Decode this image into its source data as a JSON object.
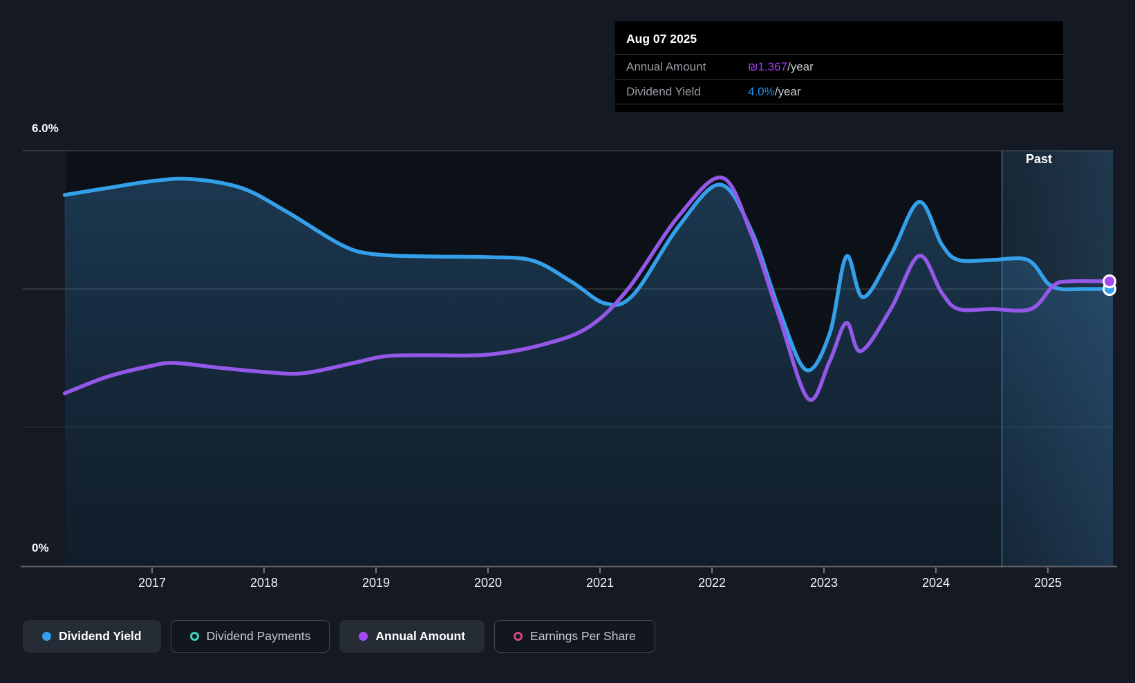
{
  "tooltip": {
    "date": "Aug 07 2025",
    "rows": [
      {
        "label": "Annual Amount",
        "value": "₪1.367",
        "suffix": "/year",
        "value_color": "#A43BF2"
      },
      {
        "label": "Dividend Yield",
        "value": "4.0%",
        "suffix": "/year",
        "value_color": "#1E96F0"
      }
    ]
  },
  "axis": {
    "y_top_label": "6.0%",
    "y_bottom_label": "0%"
  },
  "past_label": "Past",
  "legend": {
    "position": "bottom",
    "items": [
      {
        "label": "Dividend Yield",
        "color": "#34A0EA",
        "marker": "filled",
        "active": true
      },
      {
        "label": "Dividend Payments",
        "color": "#41D0C3",
        "marker": "ring",
        "active": false
      },
      {
        "label": "Annual Amount",
        "color": "#A24BF0",
        "marker": "filled",
        "active": true
      },
      {
        "label": "Earnings Per Share",
        "color": "#D1497F",
        "marker": "ring",
        "active": false
      }
    ]
  },
  "colors": {
    "page_bg": "#151923",
    "plot_bg": "#0D1118",
    "tooltip_bg": "#000000",
    "blue_line": "#34A0EA",
    "purple_line": "#9458E8",
    "blue_dot": "#2E9FE9",
    "purple_dot": "#A44BF2",
    "axis_line": "#5E6268",
    "gridline": "rgba(255,255,255,0.26)"
  },
  "chart_data": {
    "type": "area",
    "xlim": [
      2016.22,
      2025.56
    ],
    "ylim": [
      0,
      6
    ],
    "x_ticks": [
      2017,
      2018,
      2019,
      2020,
      2021,
      2022,
      2023,
      2024,
      2025
    ],
    "y_gridlines_pct": [
      6,
      4,
      2
    ],
    "grid": "horizontal",
    "legend_position": "bottom",
    "past_boundary_year": 2024.59,
    "series": [
      {
        "name": "Dividend Yield",
        "unit": "%",
        "color": "#34A0EA",
        "fill": true,
        "current_label": "4.0%/year",
        "points": [
          [
            2016.22,
            5.36
          ],
          [
            2016.6,
            5.46
          ],
          [
            2017.0,
            5.56
          ],
          [
            2017.35,
            5.59
          ],
          [
            2017.8,
            5.46
          ],
          [
            2018.2,
            5.12
          ],
          [
            2018.7,
            4.63
          ],
          [
            2019.0,
            4.5
          ],
          [
            2019.5,
            4.47
          ],
          [
            2020.0,
            4.46
          ],
          [
            2020.4,
            4.41
          ],
          [
            2020.75,
            4.1
          ],
          [
            2021.05,
            3.79
          ],
          [
            2021.3,
            3.92
          ],
          [
            2021.7,
            4.9
          ],
          [
            2022.07,
            5.51
          ],
          [
            2022.35,
            4.85
          ],
          [
            2022.6,
            3.7
          ],
          [
            2022.84,
            2.83
          ],
          [
            2023.05,
            3.35
          ],
          [
            2023.2,
            4.47
          ],
          [
            2023.35,
            3.88
          ],
          [
            2023.6,
            4.5
          ],
          [
            2023.85,
            5.26
          ],
          [
            2024.05,
            4.65
          ],
          [
            2024.2,
            4.42
          ],
          [
            2024.5,
            4.42
          ],
          [
            2024.82,
            4.42
          ],
          [
            2025.0,
            4.08
          ],
          [
            2025.12,
            4.0
          ],
          [
            2025.3,
            4.0
          ],
          [
            2025.55,
            4.0
          ]
        ]
      },
      {
        "name": "Annual Amount",
        "unit": "₪",
        "y_scale": "visual_percent_axis",
        "color": "#9458E8",
        "fill": false,
        "current_label": "₪1.367/year",
        "points": [
          [
            2016.22,
            2.49
          ],
          [
            2016.6,
            2.73
          ],
          [
            2017.0,
            2.89
          ],
          [
            2017.2,
            2.93
          ],
          [
            2017.6,
            2.86
          ],
          [
            2018.0,
            2.8
          ],
          [
            2018.35,
            2.78
          ],
          [
            2018.8,
            2.93
          ],
          [
            2019.1,
            3.03
          ],
          [
            2019.5,
            3.04
          ],
          [
            2020.0,
            3.05
          ],
          [
            2020.5,
            3.2
          ],
          [
            2020.9,
            3.45
          ],
          [
            2021.25,
            4.0
          ],
          [
            2021.7,
            5.05
          ],
          [
            2022.09,
            5.61
          ],
          [
            2022.35,
            4.8
          ],
          [
            2022.6,
            3.6
          ],
          [
            2022.86,
            2.41
          ],
          [
            2023.05,
            2.95
          ],
          [
            2023.2,
            3.51
          ],
          [
            2023.33,
            3.1
          ],
          [
            2023.6,
            3.72
          ],
          [
            2023.85,
            4.48
          ],
          [
            2024.05,
            3.95
          ],
          [
            2024.2,
            3.71
          ],
          [
            2024.5,
            3.71
          ],
          [
            2024.85,
            3.71
          ],
          [
            2025.05,
            4.05
          ],
          [
            2025.2,
            4.11
          ],
          [
            2025.55,
            4.11
          ]
        ]
      }
    ]
  }
}
